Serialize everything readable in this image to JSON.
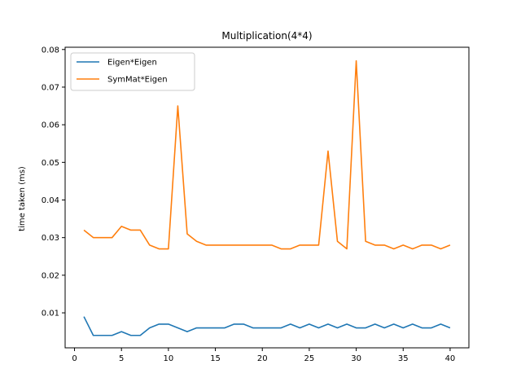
{
  "chart_data": {
    "type": "line",
    "title": "Multiplication(4*4)",
    "xlabel": "",
    "ylabel": "time taken (ms)",
    "xlim": [
      -1,
      42
    ],
    "ylim": [
      0.0007,
      0.0806
    ],
    "xticks": [
      0,
      5,
      10,
      15,
      20,
      25,
      30,
      35,
      40
    ],
    "yticks": [
      0.01,
      0.02,
      0.03,
      0.04,
      0.05,
      0.06,
      0.07,
      0.08
    ],
    "ytick_labels": [
      "0.01",
      "0.02",
      "0.03",
      "0.04",
      "0.05",
      "0.06",
      "0.07",
      "0.08"
    ],
    "grid": false,
    "legend_position": "top-left",
    "x": [
      1,
      2,
      3,
      4,
      5,
      6,
      7,
      8,
      9,
      10,
      11,
      12,
      13,
      14,
      15,
      16,
      17,
      18,
      19,
      20,
      21,
      22,
      23,
      24,
      25,
      26,
      27,
      28,
      29,
      30,
      31,
      32,
      33,
      34,
      35,
      36,
      37,
      38,
      39,
      40
    ],
    "series": [
      {
        "name": "Eigen*Eigen",
        "color": "#1f77b4",
        "values": [
          0.009,
          0.004,
          0.004,
          0.004,
          0.005,
          0.004,
          0.004,
          0.006,
          0.007,
          0.007,
          0.006,
          0.005,
          0.006,
          0.006,
          0.006,
          0.006,
          0.007,
          0.007,
          0.006,
          0.006,
          0.006,
          0.006,
          0.007,
          0.006,
          0.007,
          0.006,
          0.007,
          0.006,
          0.007,
          0.006,
          0.006,
          0.007,
          0.006,
          0.007,
          0.006,
          0.007,
          0.006,
          0.006,
          0.007,
          0.006
        ]
      },
      {
        "name": "SymMat*Eigen",
        "color": "#ff7f0e",
        "values": [
          0.032,
          0.03,
          0.03,
          0.03,
          0.033,
          0.032,
          0.032,
          0.028,
          0.027,
          0.027,
          0.065,
          0.031,
          0.029,
          0.028,
          0.028,
          0.028,
          0.028,
          0.028,
          0.028,
          0.028,
          0.028,
          0.027,
          0.027,
          0.028,
          0.028,
          0.028,
          0.053,
          0.029,
          0.027,
          0.077,
          0.029,
          0.028,
          0.028,
          0.027,
          0.028,
          0.027,
          0.028,
          0.028,
          0.027,
          0.028
        ]
      }
    ]
  }
}
